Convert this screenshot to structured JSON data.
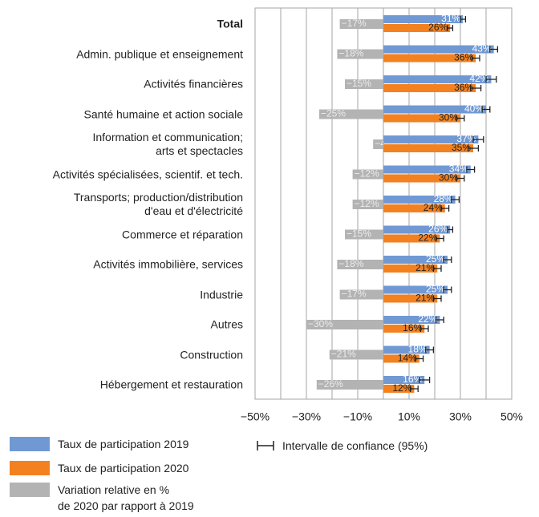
{
  "chart_data": {
    "type": "hbar_ci",
    "categories": [
      "Total",
      "Admin. publique et enseignement",
      "Activités financières",
      "Santé humaine et action sociale",
      "Information et communication;\narts et spectacles",
      "Activités spécialisées, scientif. et tech.",
      "Transports; production/distribution\nd'eau et d'électricité",
      "Commerce et réparation",
      "Activités immobilière, services",
      "Industrie",
      "Autres",
      "Construction",
      "Hébergement et restauration"
    ],
    "series": [
      {
        "name": "Taux de participation 2019",
        "color": "#7099d4",
        "values": [
          31,
          43,
          42,
          40,
          37,
          34,
          28,
          26,
          25,
          25,
          22,
          18,
          16
        ],
        "value_labels": [
          "31%",
          "43%",
          "42%",
          "40%",
          "37%",
          "34%",
          "28%",
          "26%",
          "25%",
          "25%",
          "22%",
          "18%",
          "16%"
        ],
        "errors": [
          1,
          1.5,
          2,
          1.5,
          2,
          1.5,
          1.5,
          1,
          1.5,
          1.5,
          1.5,
          1.5,
          2
        ]
      },
      {
        "name": "Taux de participation 2020",
        "color": "#f38120",
        "values": [
          26,
          36,
          36,
          30,
          35,
          30,
          24,
          22,
          21,
          21,
          16,
          14,
          12
        ],
        "value_labels": [
          "26%",
          "36%",
          "36%",
          "30%",
          "35%",
          "30%",
          "24%",
          "22%",
          "21%",
          "21%",
          "16%",
          "14%",
          "12%"
        ],
        "errors": [
          1,
          1.5,
          2,
          1.5,
          2,
          1.5,
          1.5,
          1.5,
          1.5,
          1.5,
          1.5,
          1.5,
          1.5
        ]
      },
      {
        "name": "Variation relative en %\nde 2020 par rapport à 2019",
        "color": "#b3b3b3",
        "values": [
          -17,
          -18,
          -15,
          -25,
          -4,
          -12,
          -12,
          -15,
          -18,
          -17,
          -30,
          -21,
          -26
        ],
        "value_labels": [
          "−17%",
          "−18%",
          "−15%",
          "−25%",
          "−4%",
          "−12%",
          "−12%",
          "−15%",
          "−18%",
          "−17%",
          "−30%",
          "−21%",
          "−26%"
        ]
      }
    ],
    "ci_label": "Intervalle de confiance (95%)",
    "xlim": [
      -50,
      50
    ],
    "xticks": [
      {
        "value": -50,
        "label": "−50%"
      },
      {
        "value": -30,
        "label": "−30%"
      },
      {
        "value": -10,
        "label": "−10%"
      },
      {
        "value": 10,
        "label": "10%"
      },
      {
        "value": 30,
        "label": "30%"
      },
      {
        "value": 50,
        "label": "50%"
      }
    ],
    "xgrid": [
      -50,
      -40,
      -30,
      -20,
      -10,
      0,
      10,
      20,
      30,
      40,
      50
    ],
    "grid": true,
    "legend": "bottom-left"
  }
}
